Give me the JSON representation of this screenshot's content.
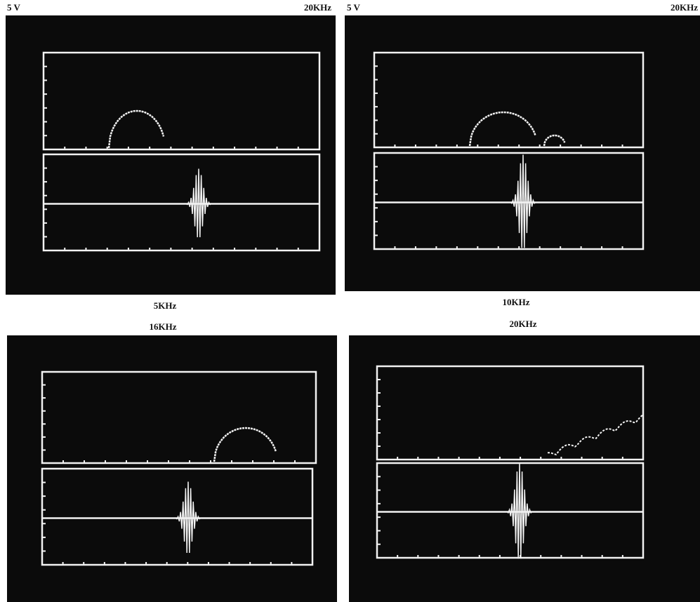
{
  "panels": [
    {
      "left_label": "5 V",
      "right_label": "20KHz",
      "caption": "5KHz"
    },
    {
      "left_label": "5 V",
      "right_label": "20KHz",
      "caption": "10KHz"
    },
    {
      "top_label": "16KHz"
    },
    {
      "top_label": "20KHz"
    }
  ]
}
